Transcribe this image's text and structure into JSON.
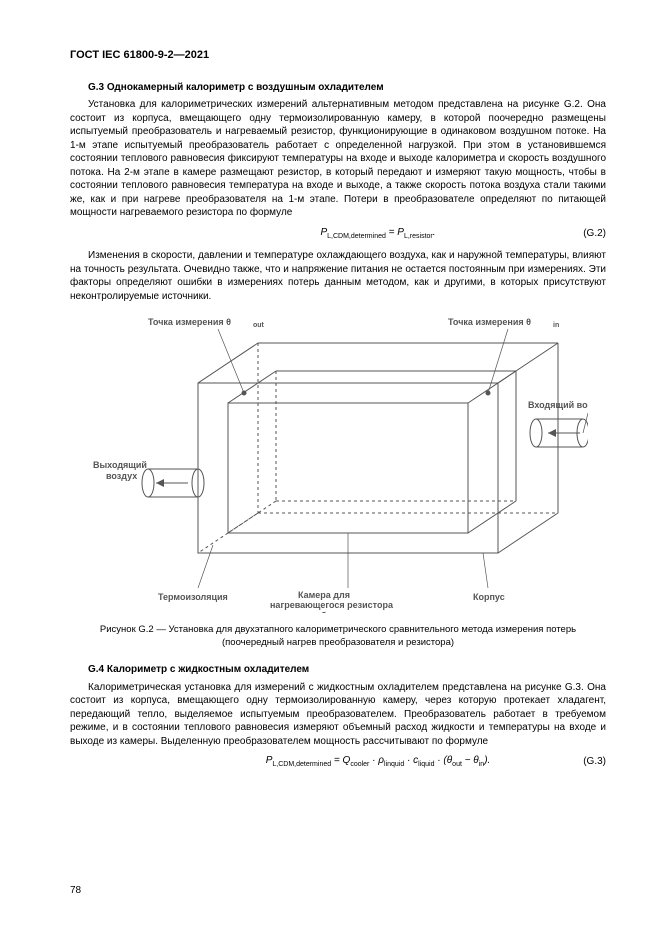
{
  "doc_header": "ГОСТ IEC 61800-9-2—2021",
  "g3": {
    "heading": "G.3  Однокамерный калориметр с воздушным охладителем",
    "p1": "Установка для калориметрических измерений альтернативным методом представлена на рисунке G.2. Она состоит из корпуса, вмещающего одну термоизолированную камеру, в которой поочередно размещены испытуемый преобразователь и нагреваемый резистор, функционирующие в одинаковом воздушном потоке. На 1-м этапе испытуемый преобразователь работает с определенной нагрузкой. При этом в установившемся состоянии теплового равновесия фиксируют температуры на входе и выходе калориметра и скорость воздушного потока. На 2-м этапе в камере размещают резистор, в который передают и измеряют такую мощность, чтобы в состоянии теплового равновесия температура на входе и выходе, а также скорость потока воздуха стали такими же, как и при нагреве преобразователя на 1-м этапе. Потери в преобразователе определяют по питающей мощности нагреваемого резистора по формуле",
    "formula_html": "P<sub>L,CDM,determined</sub> = P<sub>L,resistor</sub>.",
    "formula_num": "(G.2)",
    "p2": "Изменения в скорости, давлении и температуре охлаждающего воздуха, как и наружной температуры, влияют на точность результата. Очевидно также, что и напряжение питания не остается постоянным при измерениях. Эти факторы определяют ошибки в измерениях потерь данным методом, как и другими, в которых присутствуют неконтролируемые источники."
  },
  "figure": {
    "label_top_left": "Точка измерения θout",
    "label_top_right": "Точка измерения θin",
    "label_in_air": "Входящий воздух",
    "label_out_air": "Выходящий\nвоздух",
    "label_insulation": "Термоизоляция",
    "label_chamber": "Камера для\nнагревающегося резистора\nи преобразователя",
    "label_case": "Корпус",
    "caption": "Рисунок G.2 — Установка для двухэтапного калориметрического сравнительного метода измерения потерь (поочередный нагрев преобразователя и резистора)"
  },
  "g4": {
    "heading": "G.4  Калориметр с жидкостным охладителем",
    "p1": "Калориметрическая установка для измерений с жидкостным охладителем представлена на рисунке G.3. Она состоит из корпуса, вмещающего одну термоизолированную камеру, через которую протекает хладагент, передающий тепло, выделяемое испытуемым преобразователем. Преобразователь работает в требуемом режиме, и в состоянии теплового равновесия измеряют объемный расход жидкости и температуры на входе и выходе из камеры. Выделенную преобразователем мощность рассчитывают по формуле",
    "formula_html": "P<sub>L,CDM,determined</sub> = Q<sub>cooler</sub> · ρ<sub>linquid</sub> · c<sub>liquid</sub> · (θ<sub>out</sub> − θ<sub>in</sub>).",
    "formula_num": "(G.3)"
  },
  "page_number": "78",
  "colors": {
    "text": "#000000",
    "diagram": "#555555",
    "bg": "#ffffff"
  }
}
